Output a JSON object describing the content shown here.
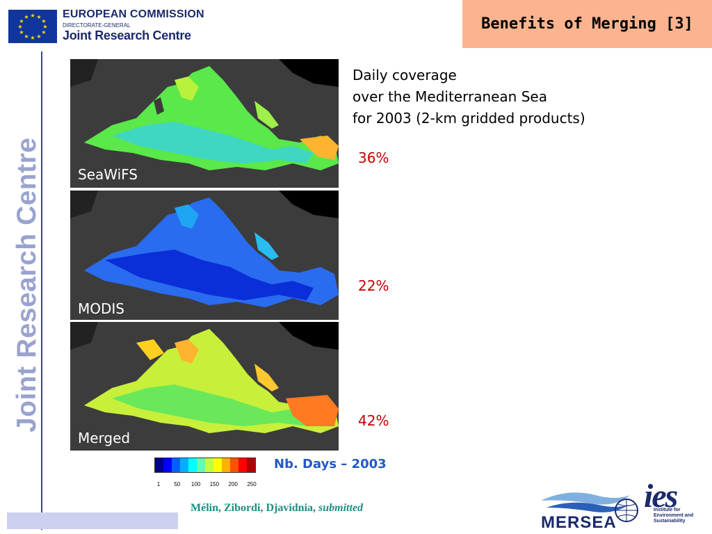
{
  "header": {
    "org_line1": "EUROPEAN COMMISSION",
    "org_line2": "DIRECTORATE-GENERAL",
    "org_line3": "Joint Research Centre",
    "title": "Benefits of Merging [3]"
  },
  "sidebar": {
    "label": "Joint Research Centre"
  },
  "maps": [
    {
      "label": "SeaWiFS",
      "coverage": "36%"
    },
    {
      "label": "MODIS",
      "coverage": "22%"
    },
    {
      "label": "Merged",
      "coverage": "42%"
    }
  ],
  "description": {
    "line1": "Daily coverage",
    "line2": "over the Mediterranean Sea",
    "line3": "for 2003 (2-km gridded products)"
  },
  "scale": {
    "caption": "Nb. Days – 2003",
    "ticks": [
      "1",
      "50",
      "100",
      "150",
      "200",
      "250"
    ],
    "colors": [
      "#00008b",
      "#0000ff",
      "#0060ff",
      "#00b0ff",
      "#00ffff",
      "#60ffb0",
      "#c0ff40",
      "#ffff00",
      "#ffb000",
      "#ff5000",
      "#ff0000",
      "#b00000"
    ]
  },
  "footer": {
    "authors": "Mélin, Zibordi, Djavidnia,",
    "status": "submitted"
  },
  "logos": {
    "mersea": "MERSEA",
    "ies_mark": "ies",
    "ies_line1": "Institute for",
    "ies_line2": "Environment and",
    "ies_line3": "Sustainability"
  }
}
